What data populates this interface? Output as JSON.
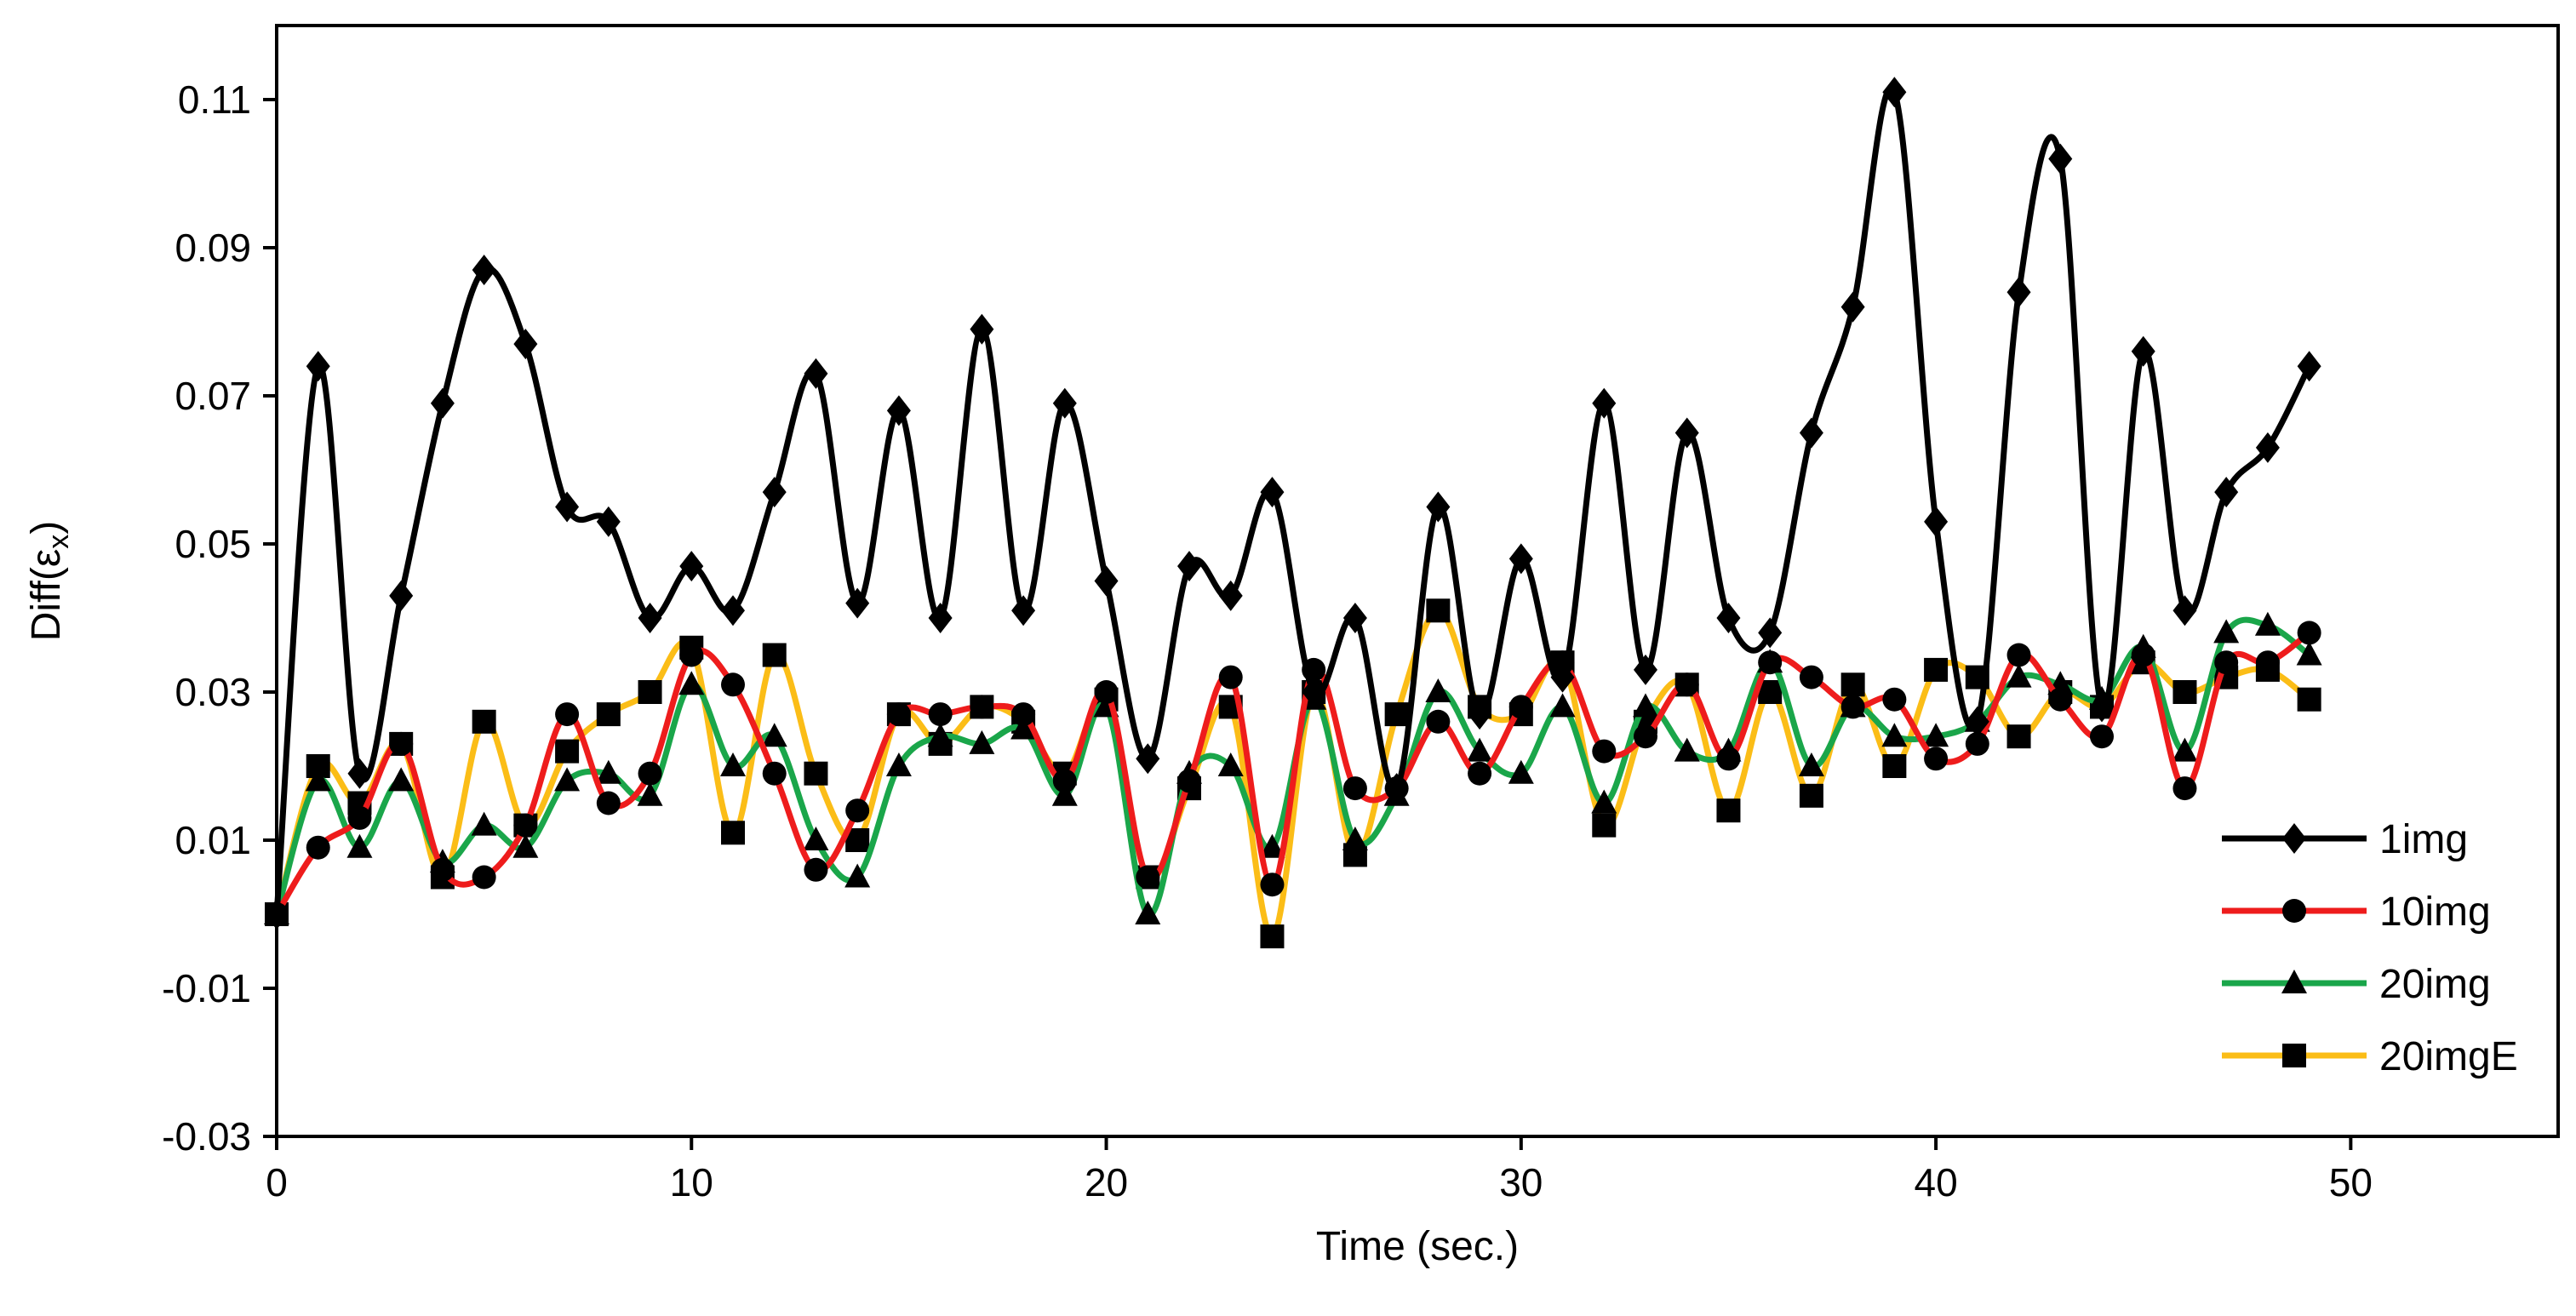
{
  "chart_data": {
    "type": "line",
    "title": "",
    "xlabel": "Time (sec.)",
    "ylabel": {
      "prefix": "Diff(",
      "symbol": "ε",
      "subscript": "x",
      "suffix": ")"
    },
    "xlim": [
      0,
      55
    ],
    "ylim": [
      -0.03,
      0.12
    ],
    "xticks": [
      0,
      10,
      20,
      30,
      40,
      50
    ],
    "yticks": [
      -0.03,
      -0.01,
      0.01,
      0.03,
      0.05,
      0.07,
      0.09,
      0.11
    ],
    "ytick_labels": [
      "-0.03",
      "-0.01",
      "0.01",
      "0.03",
      "0.05",
      "0.07",
      "0.09",
      "0.11"
    ],
    "grid": false,
    "legend_position": "bottom-right",
    "x": [
      0,
      1,
      2,
      3,
      4,
      5,
      6,
      7,
      8,
      9,
      10,
      11,
      12,
      13,
      14,
      15,
      16,
      17,
      18,
      19,
      20,
      21,
      22,
      23,
      24,
      25,
      26,
      27,
      28,
      29,
      30,
      31,
      32,
      33,
      34,
      35,
      36,
      37,
      38,
      39,
      40,
      41,
      42,
      43,
      44,
      45,
      46,
      47,
      48,
      49
    ],
    "series": [
      {
        "name": "1img",
        "color": "#000000",
        "marker": "diamond",
        "values": [
          0.0,
          0.074,
          0.019,
          0.043,
          0.069,
          0.087,
          0.077,
          0.055,
          0.053,
          0.04,
          0.047,
          0.041,
          0.057,
          0.073,
          0.042,
          0.068,
          0.04,
          0.079,
          0.041,
          0.069,
          0.045,
          0.021,
          0.047,
          0.043,
          0.057,
          0.03,
          0.04,
          0.017,
          0.055,
          0.027,
          0.048,
          0.032,
          0.069,
          0.033,
          0.065,
          0.04,
          0.038,
          0.065,
          0.082,
          0.111,
          0.053,
          0.026,
          0.084,
          0.102,
          0.028,
          0.076,
          0.041,
          0.057,
          0.063,
          0.074
        ]
      },
      {
        "name": "10img",
        "color": "#ee1c1c",
        "marker": "circle",
        "values": [
          0.0,
          0.009,
          0.013,
          0.023,
          0.006,
          0.005,
          0.012,
          0.027,
          0.015,
          0.019,
          0.035,
          0.031,
          0.019,
          0.006,
          0.014,
          0.027,
          0.027,
          0.028,
          0.027,
          0.018,
          0.03,
          0.005,
          0.018,
          0.032,
          0.004,
          0.033,
          0.017,
          0.017,
          0.026,
          0.019,
          0.028,
          0.034,
          0.022,
          0.024,
          0.031,
          0.021,
          0.034,
          0.032,
          0.028,
          0.029,
          0.021,
          0.023,
          0.035,
          0.029,
          0.024,
          0.035,
          0.017,
          0.034,
          0.034,
          0.038
        ]
      },
      {
        "name": "20img",
        "color": "#1aa64a",
        "marker": "triangle",
        "values": [
          0.0,
          0.018,
          0.009,
          0.018,
          0.007,
          0.012,
          0.009,
          0.018,
          0.019,
          0.016,
          0.031,
          0.02,
          0.024,
          0.01,
          0.005,
          0.02,
          0.024,
          0.023,
          0.025,
          0.016,
          0.028,
          0.0,
          0.019,
          0.02,
          0.009,
          0.029,
          0.01,
          0.016,
          0.03,
          0.022,
          0.019,
          0.028,
          0.015,
          0.028,
          0.022,
          0.022,
          0.034,
          0.02,
          0.028,
          0.024,
          0.024,
          0.026,
          0.032,
          0.031,
          0.029,
          0.036,
          0.022,
          0.038,
          0.039,
          0.035
        ]
      },
      {
        "name": "20imgE",
        "color": "#fbbd17",
        "marker": "square",
        "values": [
          0.0,
          0.02,
          0.015,
          0.023,
          0.005,
          0.026,
          0.012,
          0.022,
          0.027,
          0.03,
          0.036,
          0.011,
          0.035,
          0.019,
          0.01,
          0.027,
          0.023,
          0.028,
          0.026,
          0.019,
          0.029,
          0.005,
          0.017,
          0.028,
          -0.003,
          0.03,
          0.008,
          0.027,
          0.041,
          0.028,
          0.027,
          0.034,
          0.012,
          0.026,
          0.031,
          0.014,
          0.03,
          0.016,
          0.031,
          0.02,
          0.033,
          0.032,
          0.024,
          0.03,
          0.028,
          0.034,
          0.03,
          0.032,
          0.033,
          0.029
        ]
      }
    ]
  }
}
